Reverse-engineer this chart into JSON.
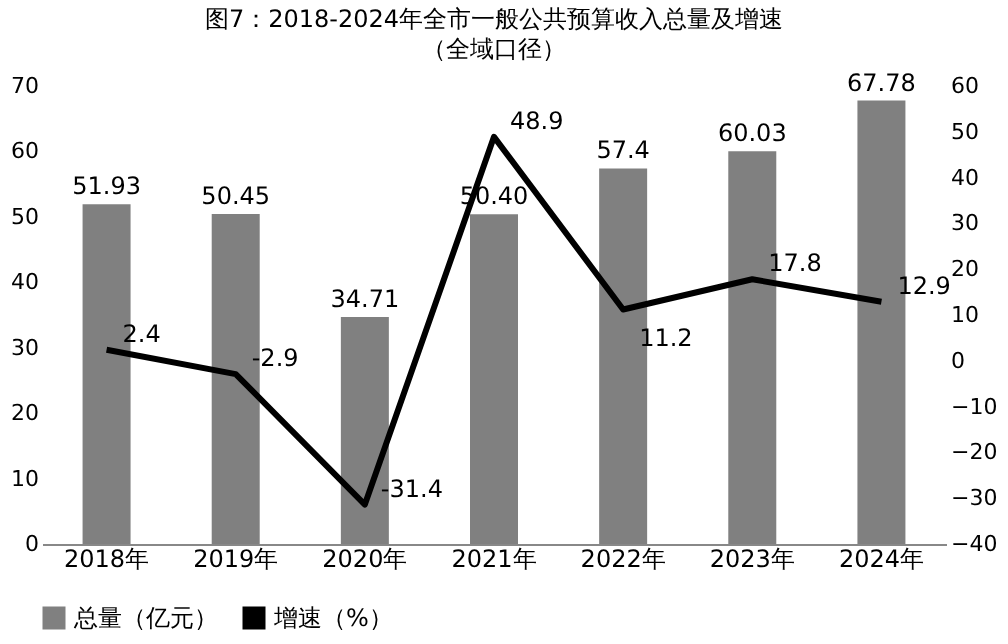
{
  "chart_data": {
    "type": "bar",
    "title": "图7：2018-2024年全市一般公共预算收入总量及增速",
    "subtitle": "（全域口径）",
    "categories": [
      "2018年",
      "2019年",
      "2020年",
      "2021年",
      "2022年",
      "2023年",
      "2024年"
    ],
    "series": [
      {
        "name": "总量（亿元）",
        "color": "#808080",
        "values": [
          51.93,
          50.45,
          34.71,
          50.4,
          57.4,
          60.03,
          67.78
        ],
        "value_labels": [
          "51.93",
          "50.45",
          "34.71",
          "50.40",
          "57.4",
          "60.03",
          "67.78"
        ]
      },
      {
        "name": "增速（%）",
        "type": "line",
        "axis": "y2",
        "color": "#000000",
        "values": [
          2.4,
          -2.9,
          -31.4,
          48.9,
          11.2,
          17.8,
          12.9
        ],
        "value_labels": [
          "2.4",
          "-2.9",
          "-31.4",
          "48.9",
          "11.2",
          "17.8",
          "12.9"
        ]
      }
    ],
    "ylim": [
      0,
      70
    ],
    "yticks": [
      0,
      10,
      20,
      30,
      40,
      50,
      60,
      70
    ],
    "y2lim": [
      -40,
      60
    ],
    "y2ticks": [
      -40,
      -30,
      -20,
      -10,
      0,
      10,
      20,
      30,
      40,
      50,
      60
    ],
    "legend": "bottom",
    "grid": false,
    "marker": "none",
    "line_style": "solid"
  }
}
